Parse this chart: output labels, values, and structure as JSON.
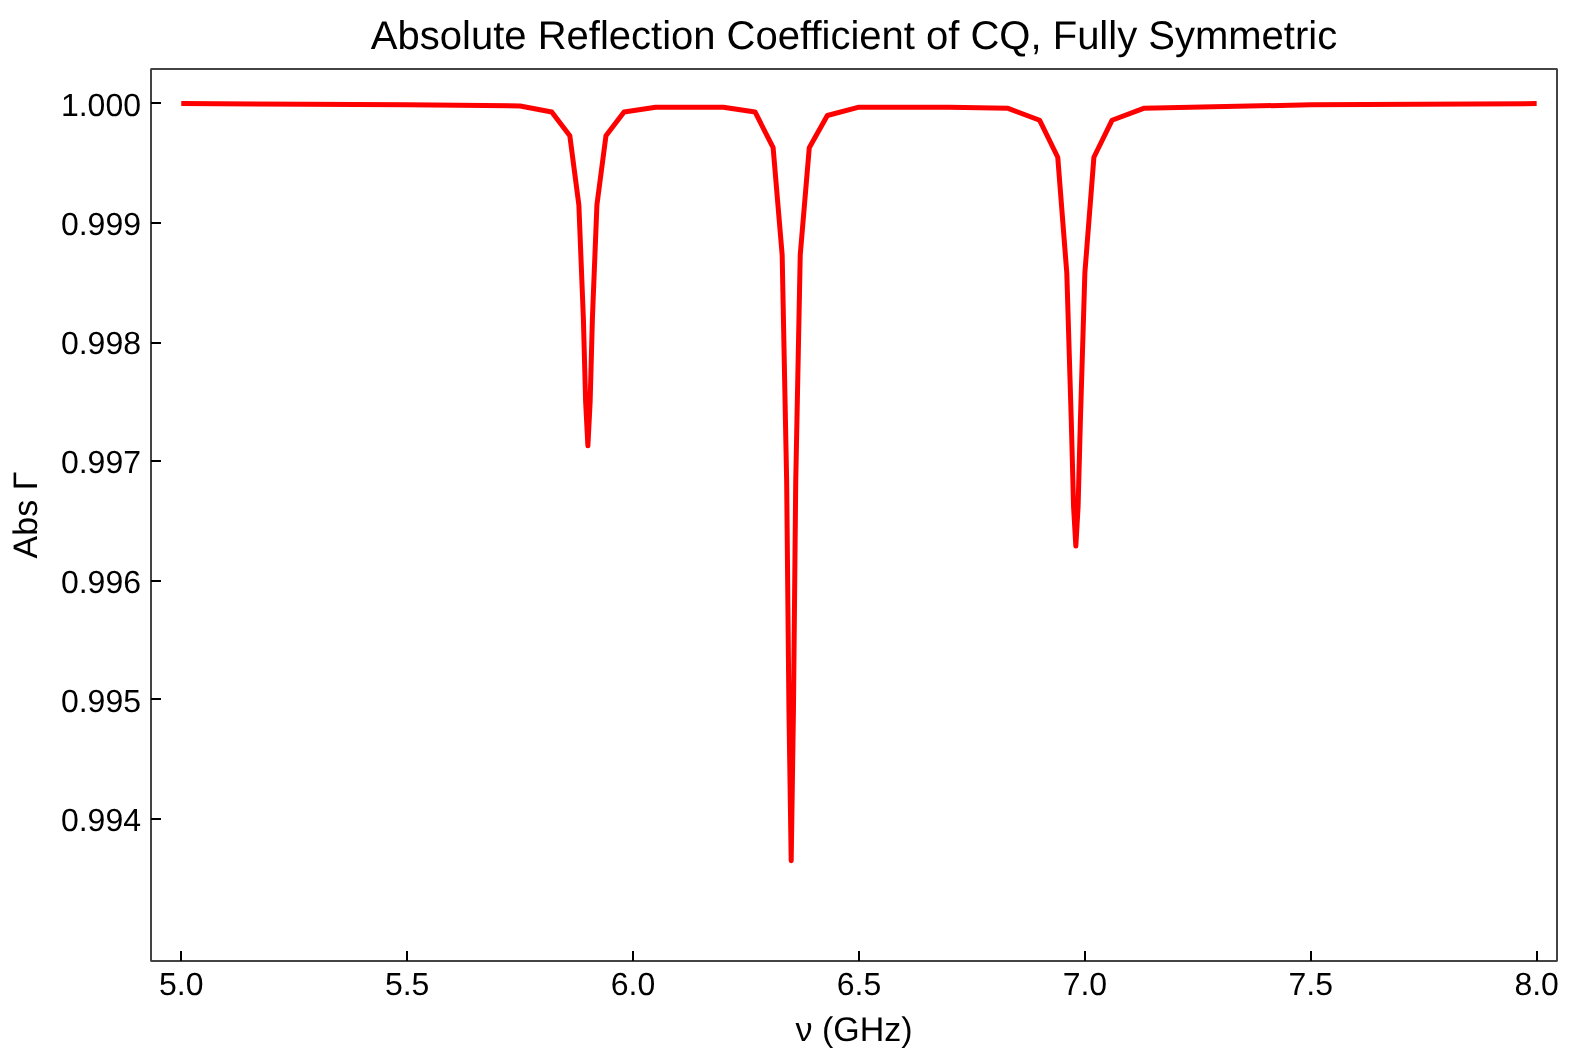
{
  "chart_data": {
    "type": "line",
    "title": "Absolute Reflection Coefficient of CQ, Fully Symmetric",
    "xlabel": "ν (GHz)",
    "ylabel": "Abs Γ",
    "x": [
      5.0,
      5.5,
      5.75,
      5.82,
      5.86,
      5.88,
      5.89,
      5.895,
      5.9,
      5.905,
      5.91,
      5.92,
      5.94,
      5.98,
      6.05,
      6.2,
      6.27,
      6.31,
      6.33,
      6.34,
      6.345,
      6.35,
      6.355,
      6.36,
      6.37,
      6.39,
      6.43,
      6.5,
      6.7,
      6.83,
      6.9,
      6.94,
      6.96,
      6.97,
      6.975,
      6.98,
      6.985,
      6.99,
      7.0,
      7.02,
      7.06,
      7.13,
      7.5,
      8.0
    ],
    "series": [
      {
        "color": "#ff0000",
        "values": [
          1.0,
          0.99999,
          0.99998,
          0.99993,
          0.99973,
          0.99915,
          0.9982,
          0.9975,
          0.99713,
          0.9975,
          0.9982,
          0.99915,
          0.99973,
          0.99993,
          0.99997,
          0.99997,
          0.99993,
          0.99963,
          0.99873,
          0.99682,
          0.99492,
          0.99365,
          0.99492,
          0.99682,
          0.99873,
          0.99963,
          0.9999,
          0.99997,
          0.99997,
          0.99996,
          0.99986,
          0.99955,
          0.99858,
          0.99733,
          0.99662,
          0.99629,
          0.99662,
          0.99733,
          0.99858,
          0.99955,
          0.99986,
          0.99996,
          0.99999,
          1.0
        ]
      }
    ],
    "xlim": [
      4.933,
      8.045
    ],
    "ylim": [
      0.99281,
      1.00029
    ],
    "xticks": [
      {
        "value": 5.0,
        "label": "5.0"
      },
      5.5,
      {
        "value": 6.0,
        "label": "6.0"
      },
      6.5,
      {
        "value": 7.0,
        "label": "7.0"
      },
      7.5,
      {
        "value": 8.0,
        "label": "8.0"
      }
    ],
    "yticks": [
      0.994,
      0.995,
      0.996,
      0.997,
      0.998,
      0.999,
      {
        "value": 1.0,
        "label": "1.000"
      }
    ],
    "grid": false,
    "marker": "none",
    "line_style": "solid"
  }
}
